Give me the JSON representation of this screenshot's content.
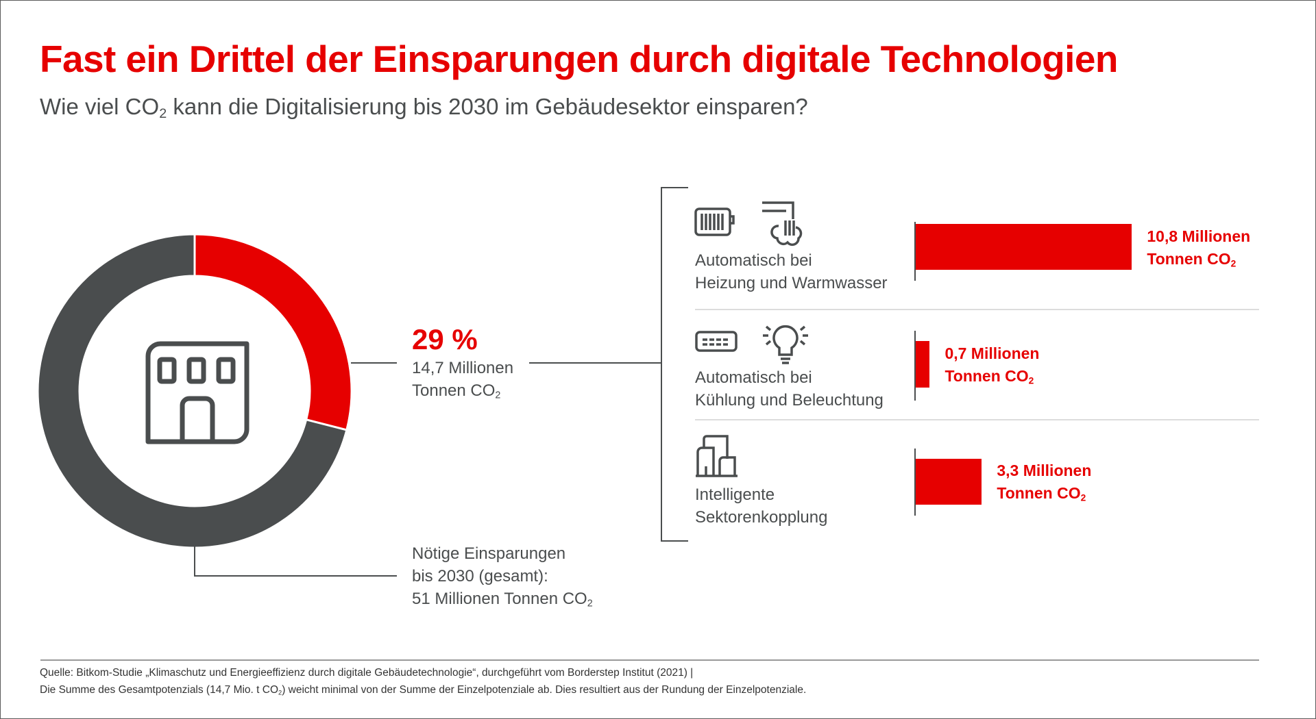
{
  "title": "Fast ein Drittel der Einsparungen durch digitale Technologien",
  "subtitle": {
    "before": "Wie viel CO",
    "sub": "2",
    "after": " kann die Digitalisierung bis 2030 im Gebäudesektor einsparen?"
  },
  "colors": {
    "accent": "#e60000",
    "dark": "#4a4d4e"
  },
  "chart_data": [
    {
      "type": "pie",
      "style": "donut",
      "values": [
        29,
        71
      ],
      "highlight": {
        "percent_label": "29 %",
        "line1": "14,7 Millionen",
        "line2": "Tonnen CO",
        "sub": "2"
      },
      "total": {
        "line1": "Nötige Einsparungen",
        "line2": "bis 2030 (gesamt):",
        "line3": "51 Millionen Tonnen CO",
        "sub": "2"
      },
      "center_icon": "building-icon"
    },
    {
      "type": "bar",
      "orientation": "horizontal",
      "unit": "Millionen Tonnen CO2",
      "categories": [
        {
          "line1": "Automatisch bei",
          "line2": "Heizung und Warmwasser",
          "icons": [
            "radiator-icon",
            "shower-icon"
          ]
        },
        {
          "line1": "Automatisch bei",
          "line2": "Kühlung und Beleuchtung",
          "icons": [
            "air-conditioner-icon",
            "lightbulb-icon"
          ]
        },
        {
          "line1": "Intelligente",
          "line2": "Sektorenkopplung",
          "icons": [
            "buildings-icon"
          ]
        }
      ],
      "values": [
        10.8,
        0.7,
        3.3
      ],
      "labels": [
        {
          "line1": "10,8 Millionen",
          "line2": "Tonnen CO",
          "sub": "2"
        },
        {
          "line1": "0,7 Millionen",
          "line2": "Tonnen CO",
          "sub": "2"
        },
        {
          "line1": "3,3 Millionen",
          "line2": "Tonnen CO",
          "sub": "2"
        }
      ]
    }
  ],
  "footer": {
    "line1": "Quelle: Bitkom-Studie „Klimaschutz und Energieeffizienz durch digitale Gebäudetechnologie“, durchgeführt vom Borderstep Institut (2021) |",
    "line2_before": "Die Summe des Gesamtpotenzials (14,7 Mio. t CO",
    "line2_sub": "2",
    "line2_after": ") weicht minimal von der Summe der Einzelpotenziale ab. Dies resultiert aus der Rundung der Einzelpotenziale."
  }
}
